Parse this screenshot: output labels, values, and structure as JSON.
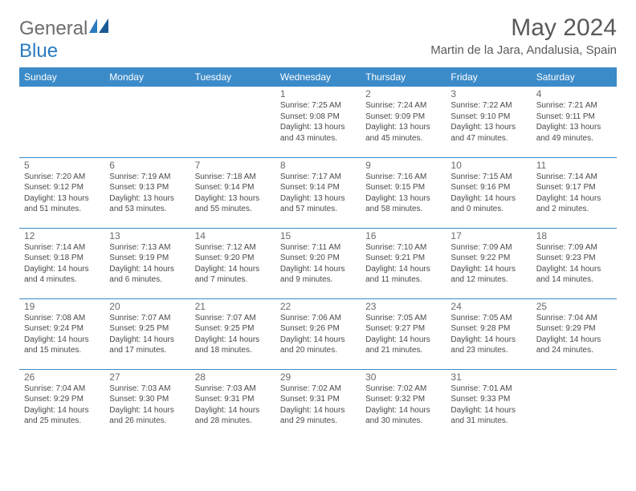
{
  "logo": {
    "general": "General",
    "blue": "Blue"
  },
  "title": "May 2024",
  "location": "Martin de la Jara, Andalusia, Spain",
  "colors": {
    "header_bg": "#3b8bc9",
    "header_text": "#ffffff",
    "border": "#3b8bc9",
    "body_text": "#4a4a4a",
    "title_text": "#5a5a5a"
  },
  "day_headers": [
    "Sunday",
    "Monday",
    "Tuesday",
    "Wednesday",
    "Thursday",
    "Friday",
    "Saturday"
  ],
  "weeks": [
    [
      null,
      null,
      null,
      {
        "n": "1",
        "sr": "7:25 AM",
        "ss": "9:08 PM",
        "dl": "13 hours and 43 minutes."
      },
      {
        "n": "2",
        "sr": "7:24 AM",
        "ss": "9:09 PM",
        "dl": "13 hours and 45 minutes."
      },
      {
        "n": "3",
        "sr": "7:22 AM",
        "ss": "9:10 PM",
        "dl": "13 hours and 47 minutes."
      },
      {
        "n": "4",
        "sr": "7:21 AM",
        "ss": "9:11 PM",
        "dl": "13 hours and 49 minutes."
      }
    ],
    [
      {
        "n": "5",
        "sr": "7:20 AM",
        "ss": "9:12 PM",
        "dl": "13 hours and 51 minutes."
      },
      {
        "n": "6",
        "sr": "7:19 AM",
        "ss": "9:13 PM",
        "dl": "13 hours and 53 minutes."
      },
      {
        "n": "7",
        "sr": "7:18 AM",
        "ss": "9:14 PM",
        "dl": "13 hours and 55 minutes."
      },
      {
        "n": "8",
        "sr": "7:17 AM",
        "ss": "9:14 PM",
        "dl": "13 hours and 57 minutes."
      },
      {
        "n": "9",
        "sr": "7:16 AM",
        "ss": "9:15 PM",
        "dl": "13 hours and 58 minutes."
      },
      {
        "n": "10",
        "sr": "7:15 AM",
        "ss": "9:16 PM",
        "dl": "14 hours and 0 minutes."
      },
      {
        "n": "11",
        "sr": "7:14 AM",
        "ss": "9:17 PM",
        "dl": "14 hours and 2 minutes."
      }
    ],
    [
      {
        "n": "12",
        "sr": "7:14 AM",
        "ss": "9:18 PM",
        "dl": "14 hours and 4 minutes."
      },
      {
        "n": "13",
        "sr": "7:13 AM",
        "ss": "9:19 PM",
        "dl": "14 hours and 6 minutes."
      },
      {
        "n": "14",
        "sr": "7:12 AM",
        "ss": "9:20 PM",
        "dl": "14 hours and 7 minutes."
      },
      {
        "n": "15",
        "sr": "7:11 AM",
        "ss": "9:20 PM",
        "dl": "14 hours and 9 minutes."
      },
      {
        "n": "16",
        "sr": "7:10 AM",
        "ss": "9:21 PM",
        "dl": "14 hours and 11 minutes."
      },
      {
        "n": "17",
        "sr": "7:09 AM",
        "ss": "9:22 PM",
        "dl": "14 hours and 12 minutes."
      },
      {
        "n": "18",
        "sr": "7:09 AM",
        "ss": "9:23 PM",
        "dl": "14 hours and 14 minutes."
      }
    ],
    [
      {
        "n": "19",
        "sr": "7:08 AM",
        "ss": "9:24 PM",
        "dl": "14 hours and 15 minutes."
      },
      {
        "n": "20",
        "sr": "7:07 AM",
        "ss": "9:25 PM",
        "dl": "14 hours and 17 minutes."
      },
      {
        "n": "21",
        "sr": "7:07 AM",
        "ss": "9:25 PM",
        "dl": "14 hours and 18 minutes."
      },
      {
        "n": "22",
        "sr": "7:06 AM",
        "ss": "9:26 PM",
        "dl": "14 hours and 20 minutes."
      },
      {
        "n": "23",
        "sr": "7:05 AM",
        "ss": "9:27 PM",
        "dl": "14 hours and 21 minutes."
      },
      {
        "n": "24",
        "sr": "7:05 AM",
        "ss": "9:28 PM",
        "dl": "14 hours and 23 minutes."
      },
      {
        "n": "25",
        "sr": "7:04 AM",
        "ss": "9:29 PM",
        "dl": "14 hours and 24 minutes."
      }
    ],
    [
      {
        "n": "26",
        "sr": "7:04 AM",
        "ss": "9:29 PM",
        "dl": "14 hours and 25 minutes."
      },
      {
        "n": "27",
        "sr": "7:03 AM",
        "ss": "9:30 PM",
        "dl": "14 hours and 26 minutes."
      },
      {
        "n": "28",
        "sr": "7:03 AM",
        "ss": "9:31 PM",
        "dl": "14 hours and 28 minutes."
      },
      {
        "n": "29",
        "sr": "7:02 AM",
        "ss": "9:31 PM",
        "dl": "14 hours and 29 minutes."
      },
      {
        "n": "30",
        "sr": "7:02 AM",
        "ss": "9:32 PM",
        "dl": "14 hours and 30 minutes."
      },
      {
        "n": "31",
        "sr": "7:01 AM",
        "ss": "9:33 PM",
        "dl": "14 hours and 31 minutes."
      },
      null
    ]
  ],
  "labels": {
    "sunrise": "Sunrise: ",
    "sunset": "Sunset: ",
    "daylight": "Daylight: "
  }
}
